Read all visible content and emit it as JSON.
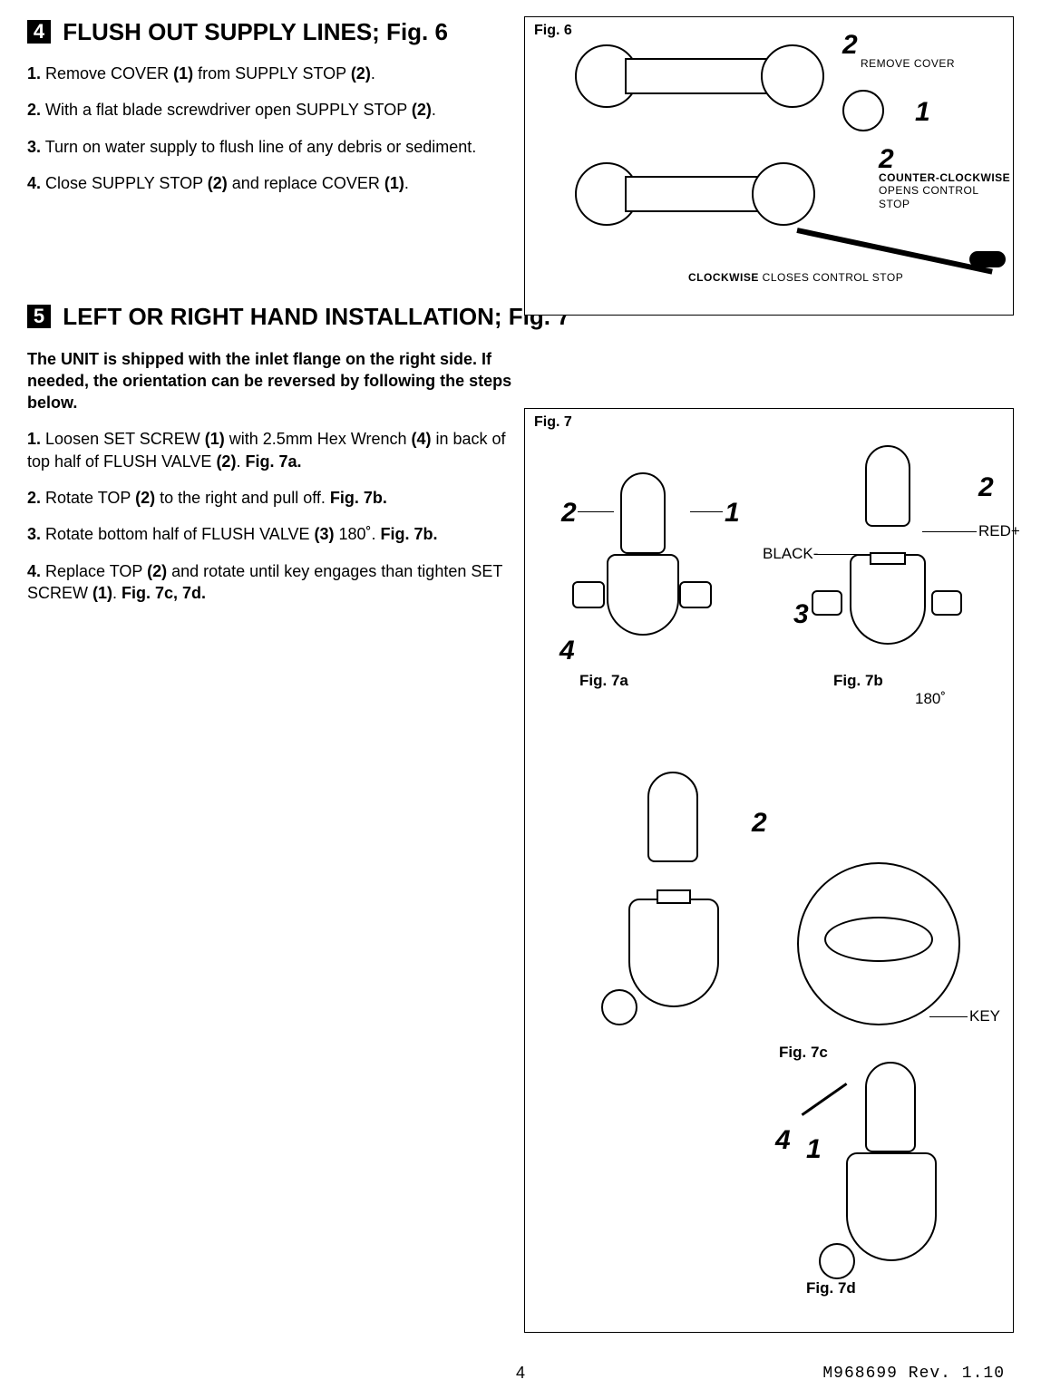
{
  "section4": {
    "badge": "4",
    "title": "FLUSH OUT SUPPLY LINES; Fig. 6",
    "steps": [
      {
        "n": "1.",
        "html": "Remove COVER <b>(1)</b> from SUPPLY STOP <b>(2)</b>."
      },
      {
        "n": "2.",
        "html": "With a flat blade screwdriver open SUPPLY STOP  <b>(2)</b>."
      },
      {
        "n": "3.",
        "html": "Turn on water supply to flush line of any debris or sediment."
      },
      {
        "n": "4.",
        "html": "Close SUPPLY STOP <b>(2)</b> and replace COVER <b>(1)</b>."
      }
    ]
  },
  "fig6": {
    "label": "Fig. 6",
    "callouts": {
      "n2a": "2",
      "n1": "1",
      "n2b": "2",
      "remove_cover": "REMOVE COVER",
      "ccw_bold": "COUNTER-CLOCKWISE",
      "ccw_rest": "OPENS CONTROL STOP",
      "cw_bold": "CLOCKWISE",
      "cw_rest": " CLOSES CONTROL STOP"
    }
  },
  "section5": {
    "badge": "5",
    "title": "LEFT OR RIGHT HAND INSTALLATION; Fig. 7",
    "intro": "The UNIT is shipped with the inlet flange on the right side. If needed, the orientation can be reversed by following the steps below.",
    "steps": [
      {
        "n": "1.",
        "html": " Loosen SET SCREW <b>(1)</b> with 2.5mm Hex Wrench <b>(4)</b> in back of top half of FLUSH VALVE  <b>(2)</b>. <b>Fig. 7a.</b>"
      },
      {
        "n": "2.",
        "html": "Rotate TOP <b>(2)</b> to the right and pull off. <b>Fig. 7b.</b>"
      },
      {
        "n": "3.",
        "html": "Rotate bottom half of FLUSH VALVE  <b>(3)</b> 180˚. <b>Fig. 7b.</b>"
      },
      {
        "n": "4.",
        "html": "Replace TOP <b>(2)</b> and rotate until key engages than tighten SET SCREW <b>(1)</b>. <b>Fig. 7c, 7d.</b>"
      }
    ]
  },
  "fig7": {
    "label": "Fig. 7",
    "sub7a": "Fig. 7a",
    "sub7b": "Fig. 7b",
    "sub7c": "Fig. 7c",
    "sub7d": "Fig. 7d",
    "callouts": {
      "a_2": "2",
      "a_1": "1",
      "a_4": "4",
      "b_2": "2",
      "b_3": "3",
      "black": "BLACK-",
      "red": "RED+",
      "deg180": "180˚",
      "c_2": "2",
      "key": "KEY",
      "d_4": "4",
      "d_1": "1"
    }
  },
  "footer": {
    "page": "4",
    "rev": "M968699 Rev. 1.10"
  }
}
